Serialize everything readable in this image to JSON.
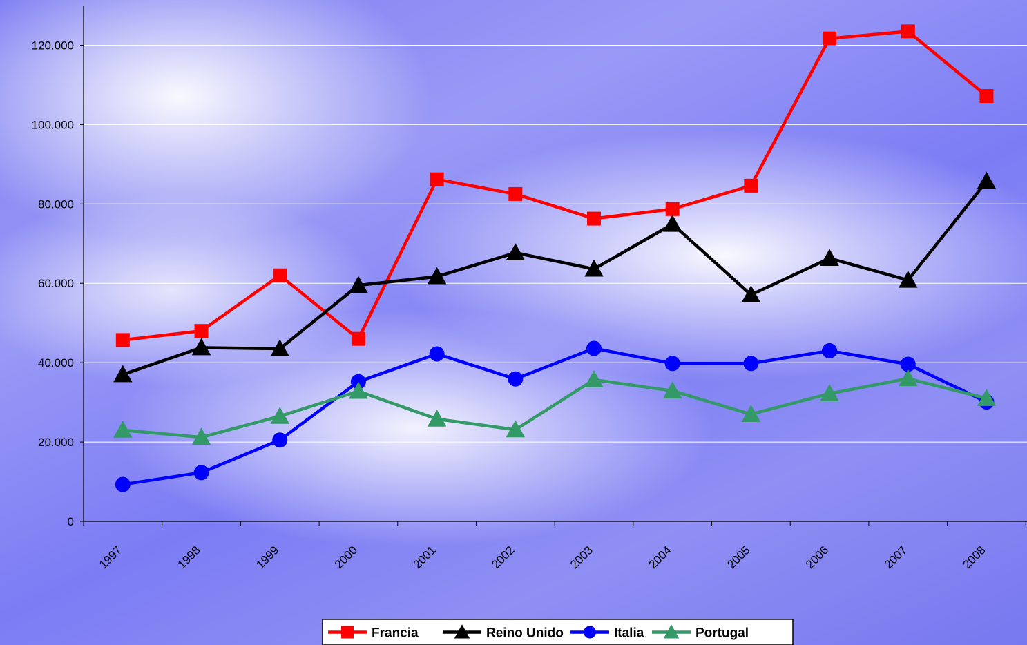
{
  "chart_data": {
    "type": "line",
    "categories": [
      "1997",
      "1998",
      "1999",
      "2000",
      "2001",
      "2002",
      "2003",
      "2004",
      "2005",
      "2006",
      "2007",
      "2008"
    ],
    "ylim": [
      0,
      130000
    ],
    "yticks": [
      0,
      20000,
      40000,
      60000,
      80000,
      100000,
      120000
    ],
    "ytick_labels": [
      "0",
      "20.000",
      "40.000",
      "60.000",
      "80.000",
      "100.000",
      "120.000"
    ],
    "grid": true,
    "legend_position": "bottom",
    "series": [
      {
        "name": "Francia",
        "color": "#ff0000",
        "marker": "square",
        "values": [
          45700,
          48000,
          62000,
          46000,
          86200,
          82500,
          76300,
          78700,
          84600,
          121700,
          123500,
          107200
        ]
      },
      {
        "name": "Reino Unido",
        "color": "#000000",
        "marker": "triangle",
        "values": [
          37000,
          43800,
          43500,
          59500,
          61700,
          67700,
          63600,
          74900,
          57100,
          66300,
          60800,
          85700
        ]
      },
      {
        "name": "Italia",
        "color": "#0000ff",
        "marker": "circle",
        "values": [
          9300,
          12300,
          20500,
          35200,
          42200,
          35900,
          43600,
          39800,
          39800,
          43000,
          39600,
          30100
        ]
      },
      {
        "name": "Portugal",
        "color": "#339966",
        "marker": "triangle",
        "values": [
          23000,
          21200,
          26500,
          32800,
          25800,
          23100,
          35700,
          32900,
          27000,
          32200,
          36000,
          31000
        ]
      }
    ]
  }
}
